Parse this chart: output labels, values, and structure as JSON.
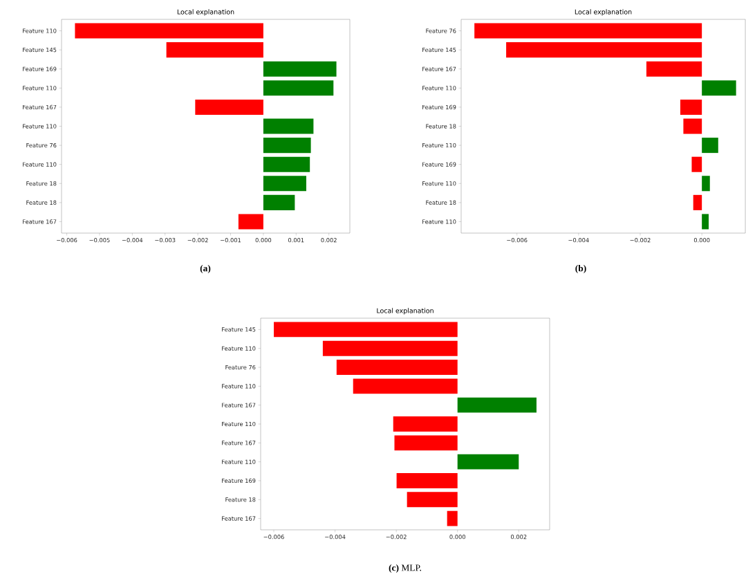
{
  "chart_data": [
    {
      "type": "bar",
      "orientation": "horizontal",
      "title": "Local explanation",
      "categories": [
        "Feature 110",
        "Feature 145",
        "Feature 169",
        "Feature 110",
        "Feature 167",
        "Feature 110",
        "Feature 76",
        "Feature 110",
        "Feature 18",
        "Feature 18",
        "Feature 167"
      ],
      "values": [
        -0.00575,
        -0.00296,
        0.00223,
        0.00214,
        -0.00208,
        0.00153,
        0.00145,
        0.00142,
        0.00131,
        0.00096,
        -0.00076
      ],
      "colors": [
        "#ff0000",
        "#ff0000",
        "#008000",
        "#008000",
        "#ff0000",
        "#008000",
        "#008000",
        "#008000",
        "#008000",
        "#008000",
        "#ff0000"
      ],
      "xlim": [
        -0.00616,
        0.00264
      ],
      "xticks": [
        {
          "value": -0.006,
          "label": "−0.006"
        },
        {
          "value": -0.005,
          "label": "−0.005"
        },
        {
          "value": -0.004,
          "label": "−0.004"
        },
        {
          "value": -0.003,
          "label": "−0.003"
        },
        {
          "value": -0.002,
          "label": "−0.002"
        },
        {
          "value": -0.001,
          "label": "−0.001"
        },
        {
          "value": 0,
          "label": "0.000"
        },
        {
          "value": 0.001,
          "label": "0.001"
        },
        {
          "value": 0.002,
          "label": "0.002"
        }
      ],
      "annotations": [
        "**(a)**"
      ]
    },
    {
      "type": "bar",
      "orientation": "horizontal",
      "title": "Local explanation",
      "categories": [
        "Feature 76",
        "Feature 145",
        "Feature 167",
        "Feature 110",
        "Feature 169",
        "Feature 18",
        "Feature 110",
        "Feature 169",
        "Feature 110",
        "Feature 18",
        "Feature 110"
      ],
      "values": [
        -0.00738,
        -0.00635,
        -0.0018,
        0.00111,
        -0.0007,
        -0.0006,
        0.00053,
        -0.00033,
        0.00026,
        -0.00028,
        0.00022
      ],
      "colors": [
        "#ff0000",
        "#ff0000",
        "#ff0000",
        "#008000",
        "#ff0000",
        "#ff0000",
        "#008000",
        "#ff0000",
        "#008000",
        "#ff0000",
        "#008000"
      ],
      "xlim": [
        -0.00781,
        0.00141
      ],
      "xticks": [
        {
          "value": -0.006,
          "label": "−0.006"
        },
        {
          "value": -0.004,
          "label": "−0.004"
        },
        {
          "value": -0.002,
          "label": "−0.002"
        },
        {
          "value": 0,
          "label": "0.000"
        }
      ],
      "annotations": [
        "**(b)**"
      ]
    },
    {
      "type": "bar",
      "orientation": "horizontal",
      "title": "Local explanation",
      "categories": [
        "Feature 145",
        "Feature 110",
        "Feature 76",
        "Feature 110",
        "Feature 167",
        "Feature 110",
        "Feature 167",
        "Feature 110",
        "Feature 169",
        "Feature 18",
        "Feature 167"
      ],
      "values": [
        -0.006,
        -0.0044,
        -0.00395,
        -0.00341,
        0.00258,
        -0.0021,
        -0.00206,
        0.002,
        -0.00199,
        -0.00165,
        -0.00034
      ],
      "colors": [
        "#ff0000",
        "#ff0000",
        "#ff0000",
        "#ff0000",
        "#008000",
        "#ff0000",
        "#ff0000",
        "#008000",
        "#ff0000",
        "#ff0000",
        "#ff0000"
      ],
      "xlim": [
        -0.00643,
        0.00301
      ],
      "xticks": [
        {
          "value": -0.006,
          "label": "−0.006"
        },
        {
          "value": -0.004,
          "label": "−0.004"
        },
        {
          "value": -0.002,
          "label": "−0.002"
        },
        {
          "value": 0,
          "label": "0.000"
        },
        {
          "value": 0.002,
          "label": "0.002"
        }
      ],
      "annotations": [
        "**(c)** MLP."
      ]
    }
  ]
}
